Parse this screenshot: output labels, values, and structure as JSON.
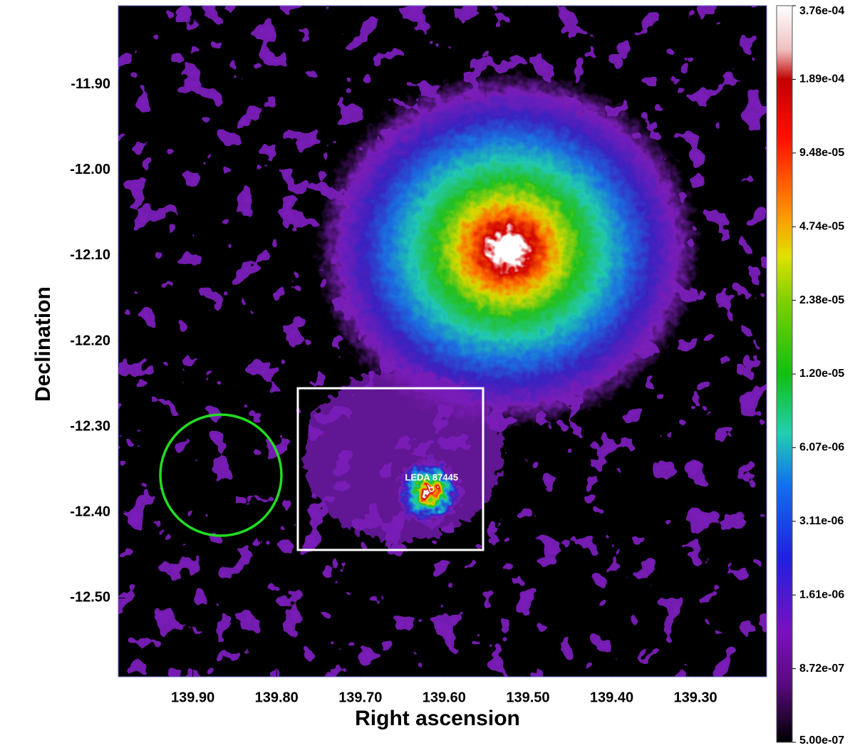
{
  "chart_data": {
    "type": "image",
    "xlabel": "Right ascension",
    "ylabel": "Declination",
    "xlim": [
      139.989,
      139.215
    ],
    "ylim": [
      -12.592,
      -11.808
    ],
    "xticks": [
      {
        "value": 139.9,
        "label": "139.90"
      },
      {
        "value": 139.8,
        "label": "139.80"
      },
      {
        "value": 139.7,
        "label": "139.70"
      },
      {
        "value": 139.6,
        "label": "139.60"
      },
      {
        "value": 139.5,
        "label": "139.50"
      },
      {
        "value": 139.4,
        "label": "139.40"
      },
      {
        "value": 139.3,
        "label": "139.30"
      }
    ],
    "yticks": [
      {
        "value": -11.9,
        "label": "-11.90"
      },
      {
        "value": -12.0,
        "label": "-12.00"
      },
      {
        "value": -12.1,
        "label": "-12.10"
      },
      {
        "value": -12.2,
        "label": "-12.20"
      },
      {
        "value": -12.3,
        "label": "-12.30"
      },
      {
        "value": -12.4,
        "label": "-12.40"
      },
      {
        "value": -12.5,
        "label": "-12.50"
      }
    ],
    "colorbar_ticks": [
      {
        "value": 0.000376,
        "label": "3.76e-04"
      },
      {
        "value": 0.000189,
        "label": "1.89e-04"
      },
      {
        "value": 9.48e-05,
        "label": "9.48e-05"
      },
      {
        "value": 4.74e-05,
        "label": "4.74e-05"
      },
      {
        "value": 2.38e-05,
        "label": "2.38e-05"
      },
      {
        "value": 1.2e-05,
        "label": "1.20e-05"
      },
      {
        "value": 6.07e-06,
        "label": "6.07e-06"
      },
      {
        "value": 3.11e-06,
        "label": "3.11e-06"
      },
      {
        "value": 1.61e-06,
        "label": "1.61e-06"
      },
      {
        "value": 8.72e-07,
        "label": "8.72e-07"
      },
      {
        "value": 5e-07,
        "label": "5.00e-07"
      }
    ],
    "annotations": [
      {
        "text": "LEDA 87445",
        "x": 139.615,
        "y": -12.373
      }
    ]
  }
}
